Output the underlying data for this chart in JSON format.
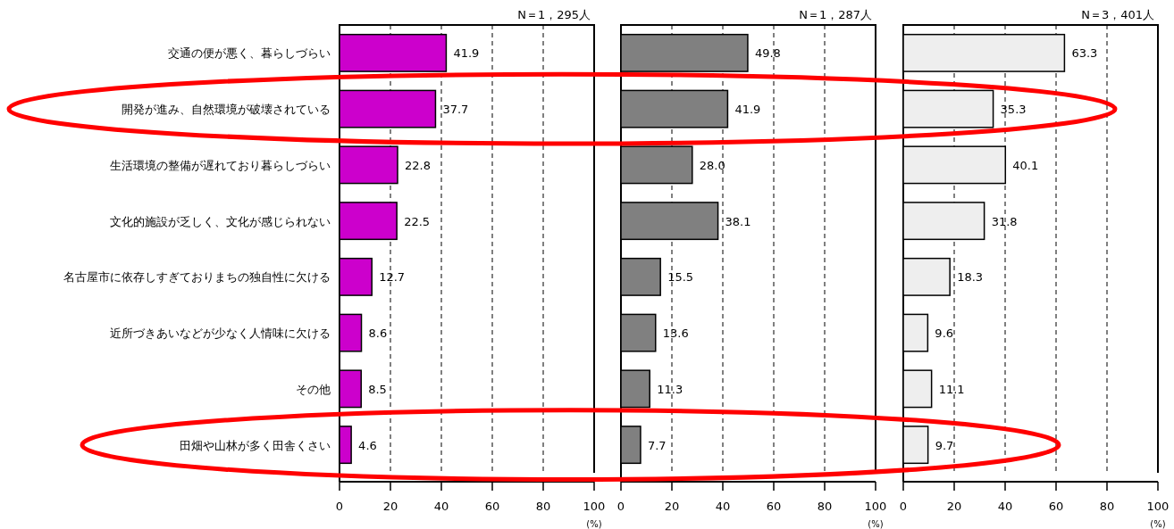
{
  "chart_data": [
    {
      "type": "bar",
      "orientation": "horizontal",
      "title": "N＝1，295人",
      "xlabel": "(%)",
      "categories": [
        "交通の便が悪く、暮らしづらい",
        "開発が進み、自然環境が破壊されている",
        "生活環境の整備が遅れており暮らしづらい",
        "文化的施設が乏しく、文化が感じられない",
        "名古屋市に依存しすぎておりまちの独自性に欠ける",
        "近所づきあいなどが少なく人情味に欠ける",
        "その他",
        "田畑や山林が多く田舎くさい"
      ],
      "values": [
        41.9,
        37.7,
        22.8,
        22.5,
        12.7,
        8.6,
        8.5,
        4.6
      ],
      "value_labels": [
        "41.9",
        "37.7",
        "22.8",
        "22.5",
        "12.7",
        "8.6",
        "8.5",
        "4.6"
      ],
      "color": "#cc00cc",
      "xlim": [
        0,
        100
      ],
      "xticks": [
        0,
        20,
        40,
        60,
        80,
        100
      ],
      "grid": "x"
    },
    {
      "type": "bar",
      "orientation": "horizontal",
      "title": "N＝1，287人",
      "xlabel": "(%)",
      "values": [
        49.8,
        41.9,
        28.0,
        38.1,
        15.5,
        13.6,
        11.3,
        7.7
      ],
      "value_labels": [
        "49.8",
        "41.9",
        "28.0",
        "38.1",
        "15.5",
        "13.6",
        "11.3",
        "7.7"
      ],
      "color": "#808080",
      "xlim": [
        0,
        100
      ],
      "xticks": [
        0,
        20,
        40,
        60,
        80,
        100
      ],
      "grid": "x",
      "tick_labels": "x"
    },
    {
      "type": "bar",
      "orientation": "horizontal",
      "title": "N＝3，401人",
      "xlabel": "(%)",
      "values": [
        63.3,
        35.3,
        40.1,
        31.8,
        18.3,
        9.6,
        11.1,
        9.7
      ],
      "value_labels": [
        "63.3",
        "35.3",
        "40.1",
        "31.8",
        "18.3",
        "9.6",
        "11.1",
        "9.7"
      ],
      "color": "#eeeeee",
      "xlim": [
        0,
        100
      ],
      "xticks": [
        0,
        20,
        40,
        60,
        80,
        100
      ],
      "grid": "x",
      "tick_labels": "x"
    }
  ]
}
